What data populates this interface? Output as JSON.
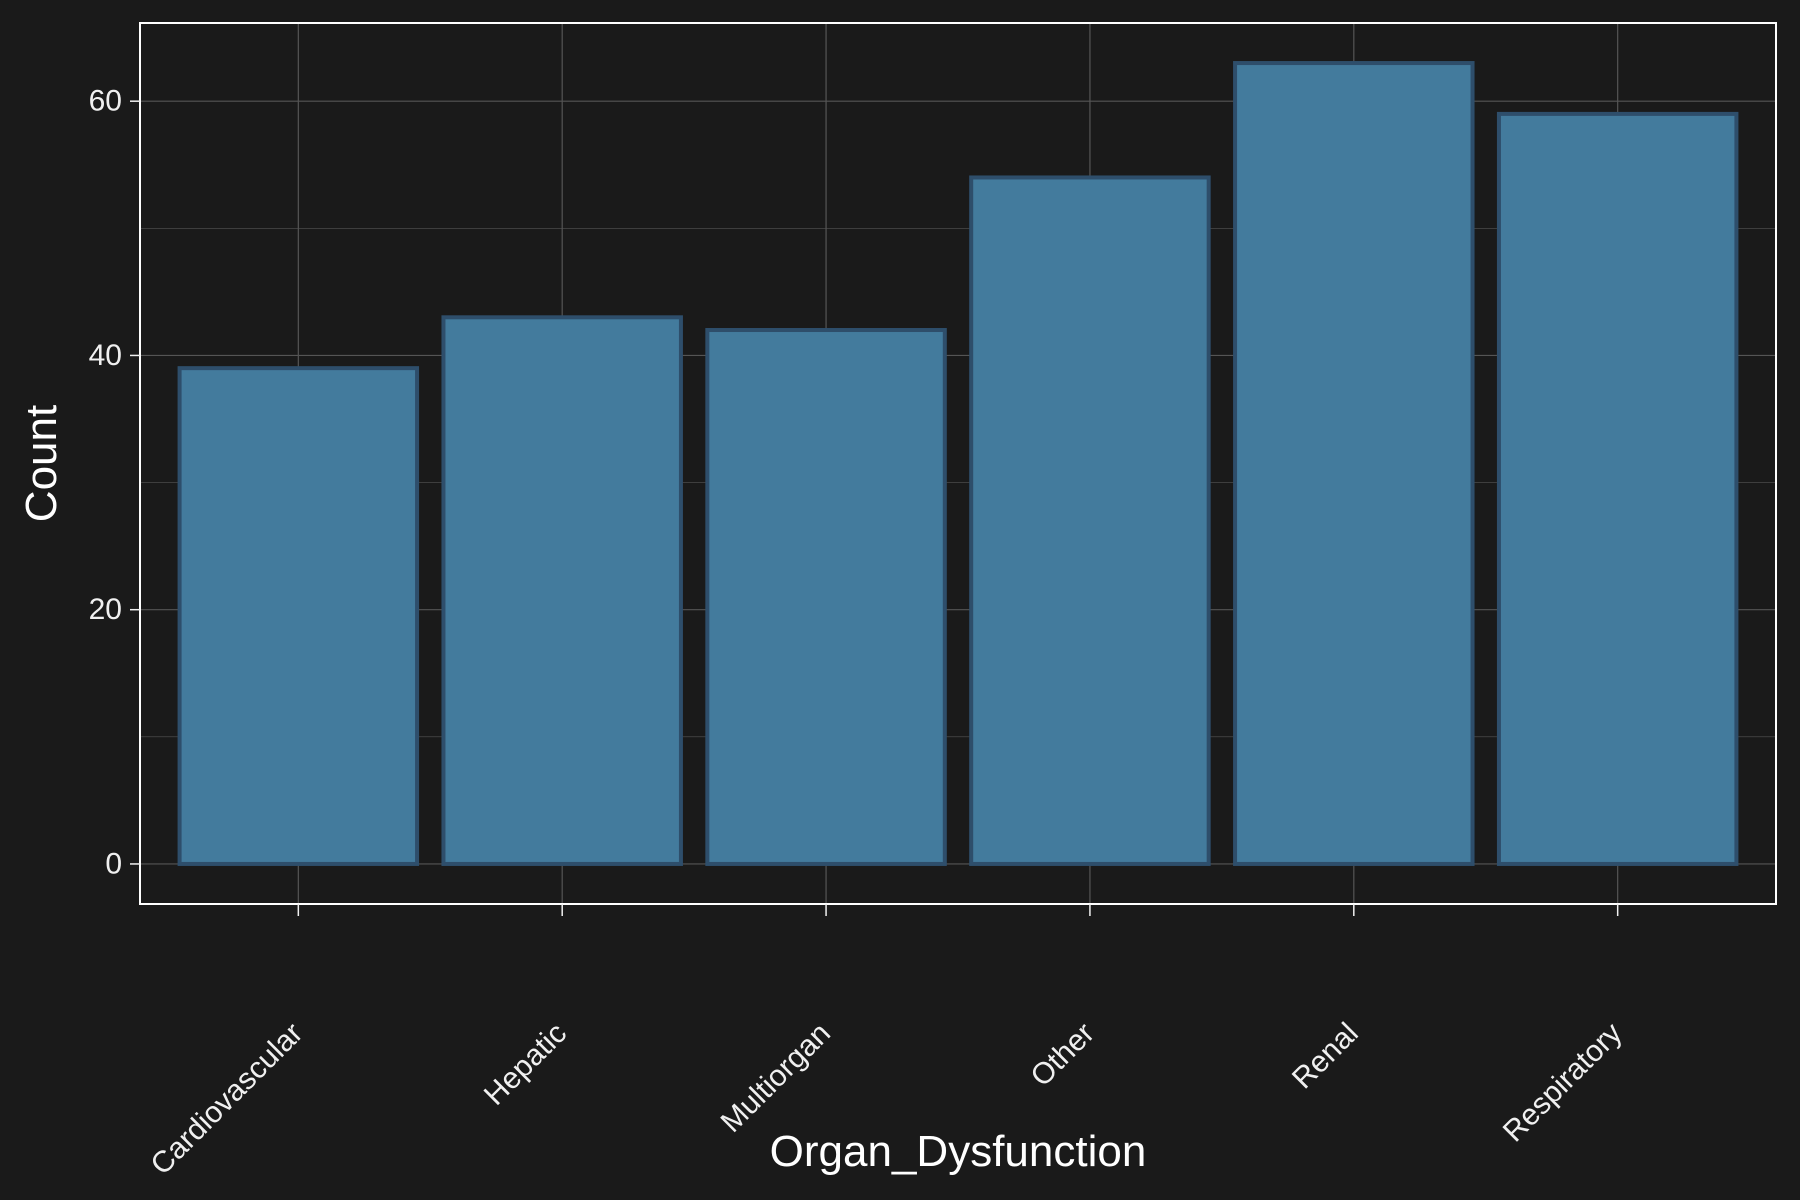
{
  "chart_data": {
    "type": "bar",
    "title": "",
    "xlabel": "Organ_Dysfunction",
    "ylabel": "Count",
    "categories": [
      "Cardiovascular",
      "Hepatic",
      "Multiorgan",
      "Other",
      "Renal",
      "Respiratory"
    ],
    "values": [
      39,
      43,
      42,
      54,
      63,
      59
    ],
    "ylim": [
      -3.15,
      66.15
    ],
    "yticks": [
      0,
      20,
      40,
      60
    ],
    "grid": true,
    "legend": "none",
    "colors": {
      "background": "#1a1a1a",
      "panel_border": "#ffffff",
      "grid": "#555555",
      "bar_fill": "#437b9d",
      "bar_stroke": "#2e4e6b",
      "text": "#f0f0f0"
    }
  }
}
